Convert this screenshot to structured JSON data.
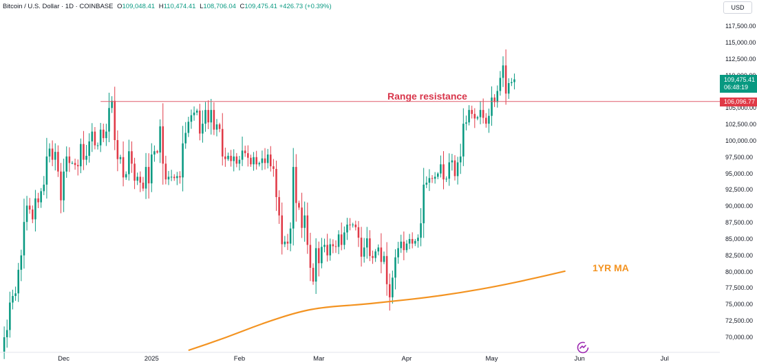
{
  "header": {
    "symbol": "Bitcoin / U.S. Dollar · 1D · COINBASE",
    "o_label": "O",
    "o_value": "109,048.41",
    "h_label": "H",
    "h_value": "110,474.41",
    "l_label": "L",
    "l_value": "108,706.04",
    "c_label": "C",
    "c_value": "109,475.41",
    "change": "+426.73 (+0.39%)"
  },
  "currency": "USD",
  "colors": {
    "up": "#089981",
    "down": "#e03a47",
    "ma": "#f39321",
    "resistance": "#e05a6a"
  },
  "chart_data": {
    "type": "candlestick",
    "x_tick_labels": [
      "Dec",
      "2025",
      "Feb",
      "Mar",
      "Apr",
      "May",
      "Jun",
      "Jul"
    ],
    "x_tick_dates": [
      "2024-12-01",
      "2025-01-01",
      "2025-02-01",
      "2025-03-01",
      "2025-04-01",
      "2025-05-01",
      "2025-06-01",
      "2025-07-01"
    ],
    "y_tick_labels": [
      "117,500.00",
      "115,000.00",
      "112,500.00",
      "110,000.00",
      "105,000.00",
      "102,500.00",
      "100,000.00",
      "97,500.00",
      "95,000.00",
      "92,500.00",
      "90,000.00",
      "87,500.00",
      "85,000.00",
      "82,500.00",
      "80,000.00",
      "77,500.00",
      "75,000.00",
      "72,500.00",
      "70,000.00"
    ],
    "y_tick_values": [
      117500,
      115000,
      112500,
      110000,
      105000,
      102500,
      100000,
      97500,
      95000,
      92500,
      90000,
      87500,
      85000,
      82500,
      80000,
      77500,
      75000,
      72500,
      70000
    ],
    "ylim": [
      68000,
      119000
    ],
    "x_range": [
      "2024-11-09",
      "2025-07-20"
    ],
    "last_price": 109475.41,
    "last_price_label": "109,475.41",
    "countdown": "06:48:19",
    "resistance_value": 106096.77,
    "resistance_label": "106,096.77",
    "annotations": {
      "resistance": "Range resistance",
      "ma": "1YR MA"
    },
    "ma_points": [
      [
        "2025-01-14",
        68100
      ],
      [
        "2025-01-27",
        70000
      ],
      [
        "2025-02-09",
        72200
      ],
      [
        "2025-02-22",
        74000
      ],
      [
        "2025-03-03",
        74700
      ],
      [
        "2025-03-16",
        75100
      ],
      [
        "2025-03-27",
        75600
      ],
      [
        "2025-04-07",
        76100
      ],
      [
        "2025-04-20",
        76900
      ],
      [
        "2025-05-03",
        77900
      ],
      [
        "2025-05-15",
        79000
      ],
      [
        "2025-05-27",
        80200
      ]
    ],
    "closes": [
      67900,
      70100,
      71200,
      75400,
      76400,
      76800,
      80400,
      82600,
      87700,
      90200,
      89600,
      88100,
      91300,
      90700,
      92400,
      93400,
      97700,
      98900,
      97200,
      98400,
      95400,
      91000,
      95400,
      97700,
      96700,
      96700,
      96400,
      96200,
      99600,
      97200,
      97800,
      100000,
      101500,
      99400,
      99400,
      101800,
      100500,
      101500,
      105100,
      106200,
      100200,
      97300,
      97600,
      94500,
      95000,
      98500,
      96600,
      94000,
      94600,
      93700,
      92800,
      96100,
      93600,
      98000,
      98500,
      98300,
      102300,
      96600,
      94200,
      94600,
      94600,
      94400,
      94700,
      94500,
      99700,
      101300,
      103000,
      104000,
      104400,
      104700,
      101200,
      102700,
      104800,
      102900,
      104800,
      101800,
      102600,
      101900,
      97700,
      97300,
      97800,
      97000,
      97700,
      96600,
      97200,
      98600,
      98200,
      97500,
      96500,
      97600,
      96500,
      96700,
      97400,
      96700,
      98000,
      96200,
      95800,
      91500,
      88700,
      84300,
      84700,
      84400,
      86700,
      96100,
      90600,
      89900,
      86800,
      88700,
      84200,
      80700,
      78600,
      83700,
      81400,
      83900,
      84200,
      82600,
      84300,
      84000,
      83900,
      85800,
      84200,
      86100,
      87300,
      87200,
      87300,
      86900,
      85300,
      82400,
      83800,
      85200,
      82500,
      82200,
      83200,
      83800,
      81600,
      82500,
      78200,
      76200,
      79200,
      82300,
      83700,
      84700,
      83400,
      84400,
      85100,
      84400,
      84800,
      85300,
      87500,
      93400,
      93700,
      94400,
      94300,
      94600,
      95100,
      96500,
      94200,
      94300,
      96800,
      97100,
      94700,
      96800,
      97700,
      102700,
      102900,
      104800,
      104200,
      103500,
      103700,
      104800,
      103600,
      102700,
      103900,
      106700,
      106000,
      107700,
      109700,
      111600,
      107300,
      108900,
      109049,
      109475
    ]
  }
}
